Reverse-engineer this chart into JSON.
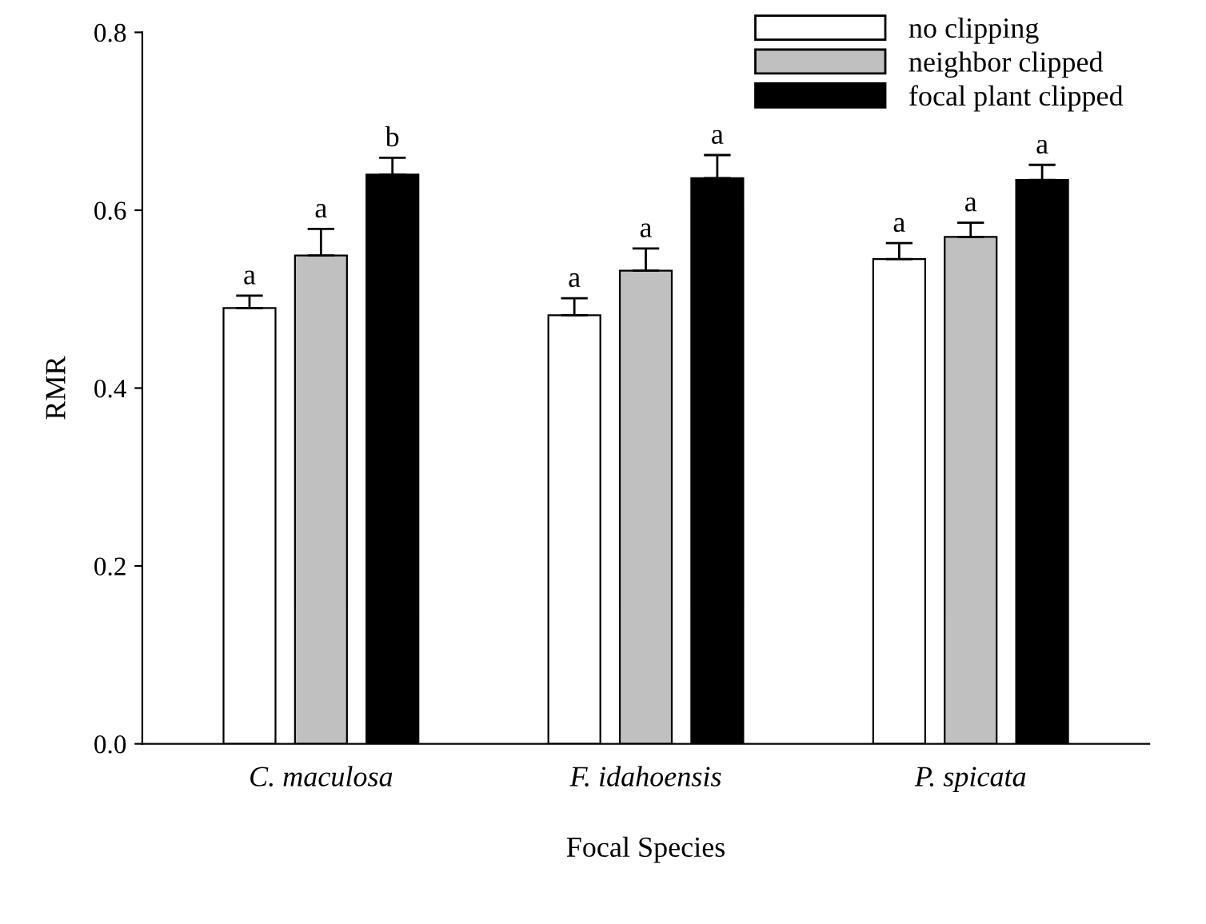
{
  "chart_data": {
    "type": "bar",
    "xlabel": "Focal Species",
    "ylabel": "RMR",
    "categories": [
      "C. maculosa",
      "F. idahoensis",
      "P. spicata"
    ],
    "series": [
      {
        "name": "no clipping",
        "color": "#ffffff",
        "values": [
          0.49,
          0.482,
          0.545
        ],
        "errors": [
          0.014,
          0.019,
          0.018
        ],
        "value_labels": [
          "a",
          "a",
          "a"
        ]
      },
      {
        "name": "neighbor clipped",
        "color": "#c0c0c0",
        "values": [
          0.549,
          0.532,
          0.57
        ],
        "errors": [
          0.03,
          0.025,
          0.016
        ],
        "value_labels": [
          "a",
          "a",
          "a"
        ]
      },
      {
        "name": "focal plant clipped",
        "color": "#000000",
        "values": [
          0.64,
          0.636,
          0.634
        ],
        "errors": [
          0.019,
          0.026,
          0.017
        ],
        "value_labels": [
          "b",
          "a",
          "a"
        ]
      }
    ],
    "ylim": [
      0,
      0.8
    ],
    "yticks": [
      {
        "value": 0,
        "label": "0.0"
      },
      {
        "value": 0.2,
        "label": "0.2"
      },
      {
        "value": 0.4,
        "label": "0.4"
      },
      {
        "value": 0.6,
        "label": "0.6"
      },
      {
        "value": 0.8,
        "label": "0.8"
      }
    ],
    "grid": false,
    "legend": "top right"
  }
}
